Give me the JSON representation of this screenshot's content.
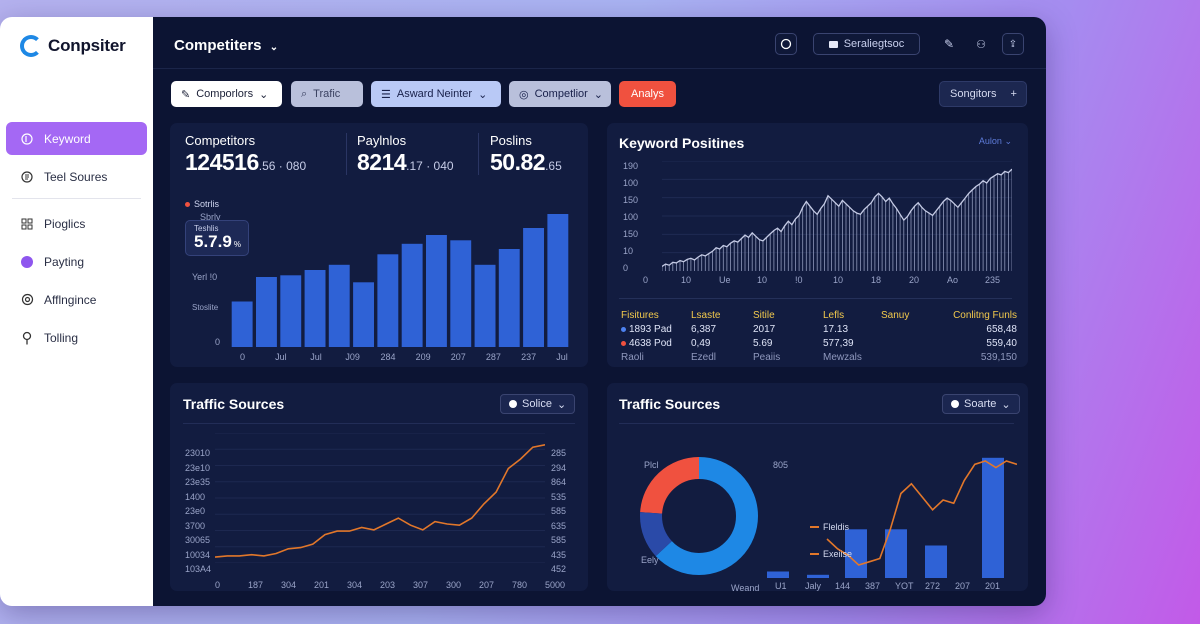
{
  "app": {
    "name": "Conpsiter"
  },
  "sidebar": {
    "items": [
      {
        "label": "Keyword",
        "icon": "document-icon",
        "active": true
      },
      {
        "label": "Teel Soures",
        "icon": "circle-e-icon"
      },
      {
        "label": "Pioglics",
        "icon": "grid-icon"
      },
      {
        "label": "Payting",
        "icon": "dot-icon"
      },
      {
        "label": "Afflngince",
        "icon": "gear-icon"
      },
      {
        "label": "Tolling",
        "icon": "pin-icon"
      }
    ]
  },
  "header": {
    "title": "Competiters",
    "search_label": "Seraliegtsoc"
  },
  "filters": {
    "competitors": "Comporlors",
    "traffic": "Trafic",
    "keyword": "Asward Neinter",
    "competitor": "Competlior",
    "analysis": "Analys",
    "settings": "Songitors"
  },
  "colors": {
    "accent": "#a468f4",
    "bar": "#2f62d6",
    "line": "#e2772a",
    "danger": "#f0513f",
    "donut_blue": "#1e88e5"
  },
  "stats": {
    "competitors": {
      "label": "Competitors",
      "value": "124516",
      "suffix": ".56 · 080"
    },
    "paylnlos": {
      "label": "Paylnlos",
      "value": "8214",
      "suffix": ".17 · 040"
    },
    "poslins": {
      "label": "Poslins",
      "value": "50.82",
      "suffix": ".65"
    }
  },
  "bar_panel": {
    "legend": "Sotrlis",
    "sub_legend": "Sbrly",
    "tooltip_label": "Teshlis",
    "tooltip_value": "5.7.9",
    "tooltip_unit": "%",
    "y_labels": [
      "Yerl !0",
      "Stoslite",
      "0"
    ],
    "x_labels": [
      "0",
      "Jul",
      "Jul",
      "J09",
      "284",
      "209",
      "207",
      "287",
      "237",
      "Jul"
    ]
  },
  "positions_panel": {
    "title": "Keyword Positines",
    "menu": "Aulon",
    "y_labels": [
      "190",
      "100",
      "150",
      "100",
      "150",
      "10",
      "0"
    ],
    "x_labels": [
      "0",
      "10",
      "Ue",
      "10",
      "!0",
      "10",
      "18",
      "20",
      "Ao",
      "235"
    ],
    "table": {
      "headers": [
        "Fisitures",
        "Lsaste",
        "Sitile",
        "Lefls",
        "Sanuy",
        "Conlitng Funls"
      ],
      "rows": [
        [
          "1893 Pad",
          "6,387",
          "2017",
          "17.13",
          "",
          "658,48"
        ],
        [
          "4638 Pod",
          "0,49",
          "5.69",
          "577,39",
          "",
          "559,40"
        ],
        [
          "Raoli",
          "Ezedl",
          "Peaiis",
          "Mewzals",
          "",
          "539,150"
        ]
      ]
    }
  },
  "traffic_left": {
    "title": "Traffic Sources",
    "select": "Solice",
    "y_left": [
      "23010",
      "23e10",
      "23e35",
      "1400",
      "23e0",
      "3700",
      "30065",
      "10034",
      "103A4"
    ],
    "y_right": [
      "285",
      "294",
      "864",
      "535",
      "585",
      "635",
      "585",
      "435",
      "452"
    ],
    "x_labels": [
      "0",
      "187",
      "304",
      "201",
      "304",
      "203",
      "307",
      "300",
      "207",
      "780",
      "5000"
    ]
  },
  "traffic_right": {
    "title": "Traffic Sources",
    "select": "Soarte",
    "donut_labels": [
      "Plcl",
      "Eely",
      "Weand"
    ],
    "bar_label": "805",
    "legend": [
      "Fleldis",
      "Exeiise"
    ],
    "x_labels": [
      "U1",
      "Jaly",
      "144",
      "387",
      "YOT",
      "272",
      "207",
      "201"
    ]
  },
  "chart_data": [
    {
      "type": "bar",
      "values": [
        26,
        40,
        41,
        44,
        47,
        37,
        53,
        59,
        64,
        61,
        47,
        56,
        68,
        76
      ],
      "ylim": [
        0,
        80
      ]
    },
    {
      "type": "area",
      "values": [
        8,
        12,
        10,
        15,
        14,
        18,
        16,
        20,
        22,
        19,
        24,
        28,
        26,
        30,
        34,
        40,
        38,
        44,
        42,
        48,
        52,
        50,
        56,
        62,
        58,
        66,
        60,
        54,
        52,
        58,
        64,
        70,
        74,
        68,
        78,
        86,
        80,
        90,
        96,
        110,
        120,
        112,
        104,
        98,
        108,
        116,
        130,
        124,
        118,
        112,
        122,
        116,
        110,
        104,
        100,
        98,
        106,
        112,
        118,
        128,
        134,
        128,
        120,
        126,
        116,
        108,
        98,
        88,
        94,
        104,
        112,
        118,
        110,
        104,
        100,
        96,
        104,
        112,
        120,
        126,
        122,
        116,
        110,
        118,
        126,
        134,
        140,
        146,
        150,
        156,
        152,
        160,
        164,
        168,
        166,
        172,
        170,
        176
      ],
      "ylim": [
        0,
        190
      ]
    },
    {
      "type": "line",
      "values": [
        5,
        6,
        6,
        7,
        6,
        8,
        12,
        13,
        16,
        24,
        27,
        27,
        30,
        28,
        33,
        38,
        32,
        28,
        35,
        33,
        32,
        38,
        50,
        60,
        80,
        88,
        98,
        100
      ],
      "ylim": [
        0,
        110
      ]
    },
    {
      "type": "bar",
      "values": [
        4,
        2,
        30,
        30,
        20,
        74
      ],
      "line": [
        24,
        18,
        14,
        8,
        10,
        12,
        30,
        52,
        58,
        50,
        42,
        48,
        46,
        60,
        70,
        72,
        68,
        72,
        70
      ],
      "ylim": [
        0,
        80
      ]
    }
  ]
}
